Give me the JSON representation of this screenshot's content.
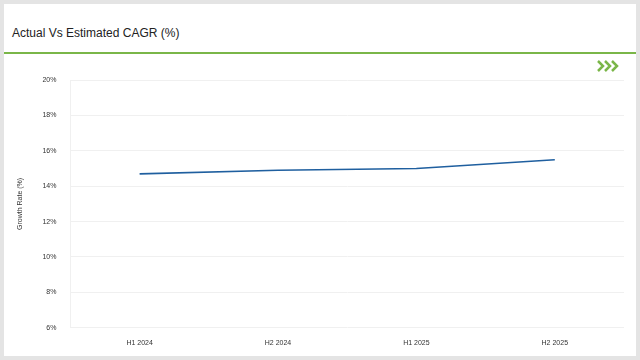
{
  "chart_data": {
    "type": "line",
    "title": "Actual Vs Estimated CAGR (%)",
    "y_label": "Growth Rate (%)",
    "categories": [
      "H1 2024",
      "H2 2024",
      "H1 2025",
      "H2 2025"
    ],
    "values": [
      14.7,
      14.9,
      15.0,
      15.5
    ],
    "color": "#1f5f9f",
    "ylim": [
      6,
      20
    ],
    "yticks": [
      {
        "value": 6,
        "label": "6%"
      },
      {
        "value": 8,
        "label": "8%"
      },
      {
        "value": 10,
        "label": "10%"
      },
      {
        "value": 12,
        "label": "12%"
      },
      {
        "value": 14,
        "label": "14%"
      },
      {
        "value": 16,
        "label": "16%"
      },
      {
        "value": 18,
        "label": "18%"
      },
      {
        "value": 20,
        "label": "20%"
      }
    ],
    "grid": true
  }
}
